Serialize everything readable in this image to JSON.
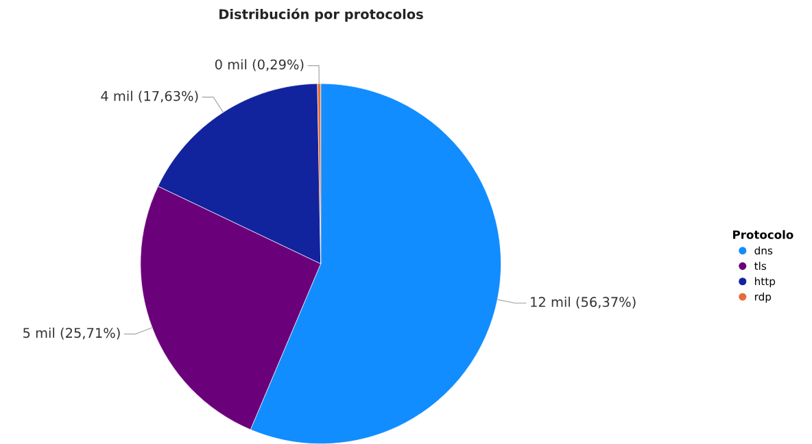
{
  "chart_data": {
    "type": "pie",
    "title": "Distribución por protocolos",
    "legend_title": "Protocolo",
    "legend": "right",
    "categories": [
      "dns",
      "tls",
      "http",
      "rdp"
    ],
    "values": [
      56.37,
      25.71,
      17.63,
      0.29
    ],
    "value_labels": [
      "12 mil (56,37%)",
      "5 mil (25,71%)",
      "4 mil (17,63%)",
      "0 mil (0,29%)"
    ],
    "colors": [
      "#118dff",
      "#6b007b",
      "#12239e",
      "#e66c37"
    ]
  }
}
